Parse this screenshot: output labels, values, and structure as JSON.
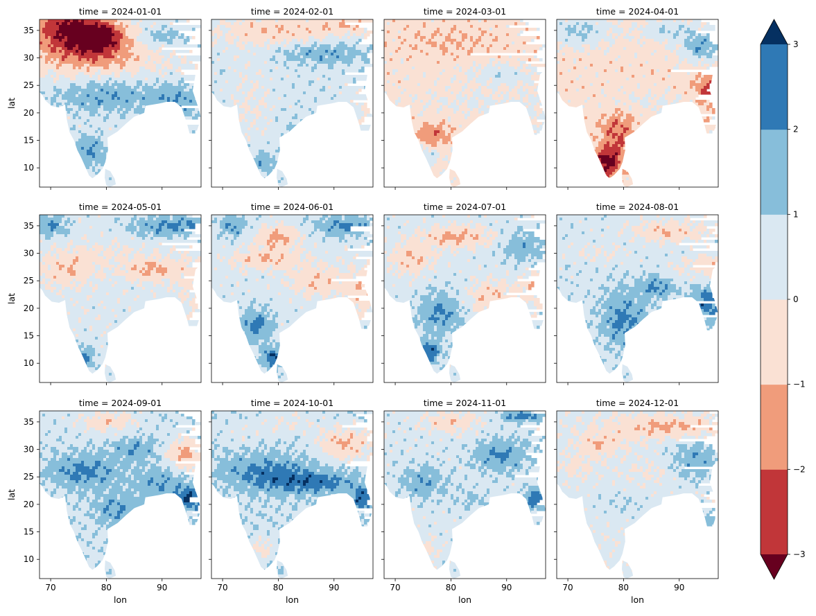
{
  "chart_data": {
    "type": "heatmap",
    "subtype": "filled-contour facet grid (3 rows x 4 cols) with shared discrete colorbar",
    "facet_titles": [
      "time = 2024-01-01",
      "time = 2024-02-01",
      "time = 2024-03-01",
      "time = 2024-04-01",
      "time = 2024-05-01",
      "time = 2024-06-01",
      "time = 2024-07-01",
      "time = 2024-08-01",
      "time = 2024-09-01",
      "time = 2024-10-01",
      "time = 2024-11-01",
      "time = 2024-12-01"
    ],
    "xlabel": "lon",
    "ylabel": "lat",
    "xlim": [
      68,
      97
    ],
    "ylim": [
      6.5,
      37
    ],
    "xticks": [
      70,
      80,
      90
    ],
    "xtick_labels": [
      "70",
      "80",
      "90"
    ],
    "yticks": [
      10,
      15,
      20,
      25,
      30,
      35
    ],
    "ytick_labels": [
      "10",
      "15",
      "20",
      "25",
      "30",
      "35"
    ],
    "colorbar": {
      "levels": [
        -3,
        -2,
        -1,
        0,
        1,
        2,
        3
      ],
      "tick_labels": [
        "−3",
        "−2",
        "−1",
        "0",
        "1",
        "2",
        "3"
      ],
      "extend": "both",
      "colors": {
        "under": "#67001f",
        "bins": [
          "#c13639",
          "#f09c7b",
          "#fae1d4",
          "#dae8f2",
          "#87beda",
          "#2f79b5"
        ],
        "over": "#053061"
      }
    },
    "panels": [
      {
        "time": "2024-01-01",
        "base": 0.5,
        "blobs": [
          [
            73,
            36,
            6,
            3,
            -2.5
          ],
          [
            79,
            34,
            4,
            2.5,
            -2.5
          ],
          [
            76,
            32,
            9,
            3,
            -1.5
          ],
          [
            83,
            29,
            14,
            2.5,
            -0.6
          ],
          [
            90,
            34,
            4,
            1.5,
            1.2
          ],
          [
            80,
            23,
            10,
            3,
            1.4
          ],
          [
            93,
            22,
            4,
            3,
            1.3
          ],
          [
            77,
            13,
            3,
            3,
            1.5
          ],
          [
            75,
            33,
            10,
            6,
            -1.4
          ]
        ]
      },
      {
        "time": "2024-02-01",
        "base": 0.6,
        "blobs": [
          [
            80,
            35,
            12,
            3,
            -1.4
          ],
          [
            93,
            36,
            6,
            1.5,
            -1.2
          ],
          [
            86,
            15,
            4,
            3,
            2.0
          ],
          [
            75,
            22,
            4,
            8,
            -0.6
          ],
          [
            88,
            31,
            8,
            2,
            1.3
          ],
          [
            77,
            11,
            2,
            2,
            1.3
          ],
          [
            95,
            20,
            3,
            4,
            -0.5
          ]
        ]
      },
      {
        "time": "2024-03-01",
        "base": -0.4,
        "blobs": [
          [
            77,
            16,
            3,
            2,
            -1.5
          ],
          [
            89,
            27,
            6,
            2,
            1.1
          ],
          [
            76,
            12,
            2,
            1.5,
            1.3
          ],
          [
            85,
            22,
            10,
            2,
            0.6
          ],
          [
            80,
            33,
            10,
            3,
            -0.6
          ],
          [
            95,
            20,
            3,
            4,
            0.5
          ]
        ]
      },
      {
        "time": "2024-04-01",
        "base": -0.5,
        "blobs": [
          [
            77,
            11,
            2.5,
            2.5,
            -3.0
          ],
          [
            79,
            16,
            3,
            4,
            -1.6
          ],
          [
            72,
            35,
            6,
            3,
            1.6
          ],
          [
            94,
            32,
            4,
            3,
            2.2
          ],
          [
            88,
            35,
            5,
            2,
            1.4
          ],
          [
            95,
            24,
            2.5,
            3,
            -1.6
          ],
          [
            85,
            22,
            10,
            2,
            0.6
          ]
        ]
      },
      {
        "time": "2024-05-01",
        "base": 0.4,
        "blobs": [
          [
            73,
            27,
            5,
            3,
            -1.3
          ],
          [
            88,
            27,
            5,
            2,
            -1.6
          ],
          [
            92,
            35,
            8,
            2,
            1.8
          ],
          [
            70,
            35,
            3,
            2,
            1.6
          ],
          [
            76,
            11,
            2,
            2,
            2.0
          ],
          [
            95,
            25,
            3,
            5,
            -0.7
          ],
          [
            80,
            30,
            8,
            2,
            -0.5
          ]
        ]
      },
      {
        "time": "2024-06-01",
        "base": 0.5,
        "blobs": [
          [
            78,
            29,
            6,
            2,
            -1.5
          ],
          [
            87,
            25,
            5,
            3,
            -1.3
          ],
          [
            92,
            35,
            6,
            2,
            1.6
          ],
          [
            76,
            17,
            3,
            3,
            1.8
          ],
          [
            79,
            11,
            2,
            2,
            2.3
          ],
          [
            80,
            33,
            4,
            2,
            -1.8
          ],
          [
            95,
            23,
            3,
            4,
            -1.3
          ],
          [
            72,
            35,
            3,
            2,
            1.5
          ]
        ]
      },
      {
        "time": "2024-07-01",
        "base": 0.5,
        "blobs": [
          [
            81,
            33,
            6,
            2,
            -1.8
          ],
          [
            73,
            29,
            4,
            3,
            -1.4
          ],
          [
            78,
            19,
            4,
            4,
            1.6
          ],
          [
            76,
            12,
            2,
            2,
            2.4
          ],
          [
            87,
            22,
            4,
            3,
            -1.4
          ],
          [
            95,
            24,
            3,
            3,
            -1.3
          ],
          [
            93,
            31,
            4,
            3,
            1.2
          ]
        ]
      },
      {
        "time": "2024-08-01",
        "base": 0.6,
        "blobs": [
          [
            88,
            34,
            7,
            2,
            -1.5
          ],
          [
            80,
            18,
            4,
            5,
            1.7
          ],
          [
            86,
            24,
            3,
            2,
            1.6
          ],
          [
            95,
            21,
            3,
            3,
            2.0
          ],
          [
            75,
            30,
            6,
            2,
            -0.6
          ],
          [
            90,
            27,
            4,
            2,
            -0.5
          ],
          [
            95,
            28,
            3,
            2,
            -1.2
          ]
        ]
      },
      {
        "time": "2024-09-01",
        "base": 0.7,
        "blobs": [
          [
            94,
            29,
            3,
            3,
            -2.0
          ],
          [
            80,
            35,
            5,
            2,
            -1.4
          ],
          [
            95,
            21,
            3,
            2,
            2.2
          ],
          [
            76,
            26,
            6,
            3,
            1.6
          ],
          [
            90,
            24,
            5,
            3,
            1.2
          ],
          [
            82,
            19,
            4,
            3,
            1.3
          ],
          [
            85,
            30,
            4,
            2,
            1.2
          ]
        ]
      },
      {
        "time": "2024-10-01",
        "base": 0.8,
        "blobs": [
          [
            92,
            31,
            5,
            3,
            -1.9
          ],
          [
            86,
            24,
            8,
            2,
            1.7
          ],
          [
            78,
            26,
            8,
            3,
            1.4
          ],
          [
            95,
            21,
            2,
            2,
            2.0
          ],
          [
            77,
            12,
            2,
            2,
            -1.2
          ],
          [
            82,
            35,
            6,
            2,
            -0.7
          ],
          [
            74,
            33,
            4,
            2,
            -0.5
          ]
        ]
      },
      {
        "time": "2024-11-01",
        "base": 0.5,
        "blobs": [
          [
            89,
            29,
            5,
            3,
            1.6
          ],
          [
            80,
            35,
            5,
            2,
            -1.2
          ],
          [
            93,
            36,
            4,
            1,
            2.0
          ],
          [
            95,
            21,
            2,
            2,
            2.2
          ],
          [
            76,
            12,
            2,
            2,
            -0.8
          ],
          [
            75,
            24,
            4,
            3,
            1.3
          ],
          [
            84,
            21,
            3,
            2,
            0.7
          ]
        ]
      },
      {
        "time": "2024-12-01",
        "base": 0.3,
        "blobs": [
          [
            88,
            34,
            10,
            2,
            -1.5
          ],
          [
            76,
            31,
            4,
            2,
            -1.2
          ],
          [
            93,
            28,
            5,
            4,
            1.4
          ],
          [
            94,
            17,
            3,
            2,
            1.3
          ],
          [
            80,
            20,
            6,
            3,
            0.5
          ],
          [
            72,
            27,
            3,
            2,
            -0.6
          ],
          [
            85,
            26,
            4,
            2,
            -0.5
          ]
        ]
      }
    ]
  }
}
